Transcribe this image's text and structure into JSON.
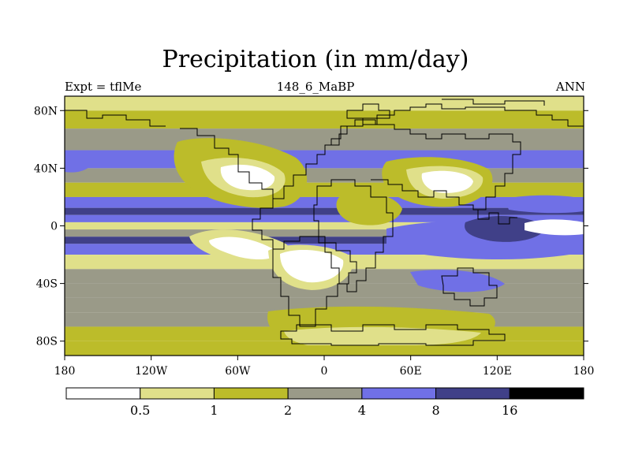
{
  "title": "Precipitation (in mm/day)",
  "subtitle_left": "Expt = tflMe",
  "subtitle_center": "148_6_MaBP",
  "subtitle_right": "ANN",
  "chart_data": {
    "type": "heatmap",
    "title": "Precipitation (in mm/day)",
    "units": "mm/day",
    "experiment": "tflMe",
    "period": "148_6_MaBP",
    "season": "ANN",
    "x_range": [
      -180,
      180
    ],
    "y_range": [
      -90,
      90
    ],
    "x_ticks": [
      -180,
      -120,
      -60,
      0,
      60,
      120,
      180
    ],
    "x_tick_labels": [
      "180",
      "120W",
      "60W",
      "0",
      "60E",
      "120E",
      "180"
    ],
    "y_ticks": [
      80,
      40,
      0,
      -40,
      -80
    ],
    "y_tick_labels": [
      "80N",
      "40N",
      "0",
      "40S",
      "80S"
    ],
    "levels": [
      0.5,
      1,
      2,
      4,
      8,
      16
    ],
    "level_labels": [
      "0.5",
      "1",
      "2",
      "4",
      "8",
      "16"
    ],
    "colors": [
      "#ffffff",
      "#e0e08a",
      "#bcbc2a",
      "#9a9a88",
      "#7070e6",
      "#404088",
      "#000000"
    ],
    "zonal_profile": [
      {
        "lat": 85,
        "value": 0.8
      },
      {
        "lat": 75,
        "value": 1.5
      },
      {
        "lat": 60,
        "value": 2.5
      },
      {
        "lat": 45,
        "value": 4.5
      },
      {
        "lat": 35,
        "value": 3.0
      },
      {
        "lat": 25,
        "value": 1.5
      },
      {
        "lat": 15,
        "value": 4.5
      },
      {
        "lat": 10,
        "value": 9.0
      },
      {
        "lat": 5,
        "value": 5.0
      },
      {
        "lat": 0,
        "value": 0.7
      },
      {
        "lat": -5,
        "value": 3.0
      },
      {
        "lat": -10,
        "value": 9.0
      },
      {
        "lat": -15,
        "value": 5.0
      },
      {
        "lat": -25,
        "value": 0.8
      },
      {
        "lat": -35,
        "value": 3.0
      },
      {
        "lat": -45,
        "value": 3.5
      },
      {
        "lat": -55,
        "value": 3.0
      },
      {
        "lat": -65,
        "value": 2.5
      },
      {
        "lat": -75,
        "value": 1.2
      },
      {
        "lat": -85,
        "value": 1.5
      }
    ]
  }
}
